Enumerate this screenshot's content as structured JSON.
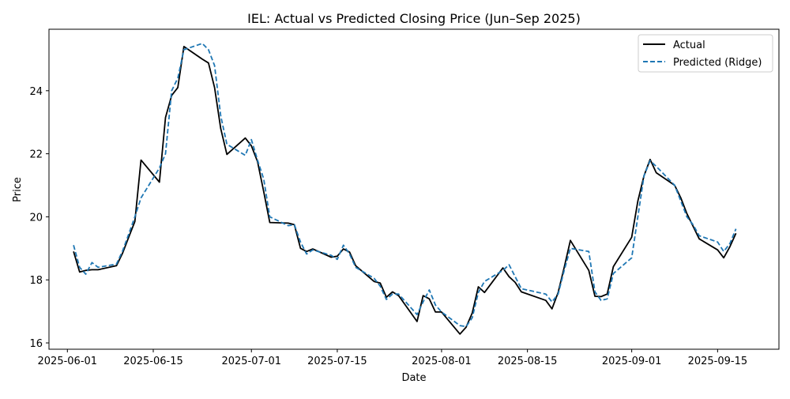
{
  "chart_data": {
    "type": "line",
    "title": "IEL: Actual vs Predicted Closing Price (Jun–Sep 2025)",
    "xlabel": "Date",
    "ylabel": "Price",
    "xlim": [
      "2025-05-29",
      "2025-09-25"
    ],
    "ylim": [
      15.8,
      25.95
    ],
    "x_ticks": [
      "2025-06-01",
      "2025-06-15",
      "2025-07-01",
      "2025-07-15",
      "2025-08-01",
      "2025-08-15",
      "2025-09-01",
      "2025-09-15"
    ],
    "y_ticks": [
      16,
      18,
      20,
      22,
      24
    ],
    "legend_position": "top-right",
    "grid": false,
    "series": [
      {
        "name": "Actual",
        "color": "#000000",
        "style": "solid",
        "points": [
          [
            "2025-06-02",
            18.9
          ],
          [
            "2025-06-03",
            18.25
          ],
          [
            "2025-06-04",
            18.3
          ],
          [
            "2025-06-05",
            18.32
          ],
          [
            "2025-06-06",
            18.32
          ],
          [
            "2025-06-09",
            18.45
          ],
          [
            "2025-06-10",
            18.85
          ],
          [
            "2025-06-11",
            19.35
          ],
          [
            "2025-06-12",
            19.85
          ],
          [
            "2025-06-13",
            21.8
          ],
          [
            "2025-06-16",
            21.1
          ],
          [
            "2025-06-17",
            23.15
          ],
          [
            "2025-06-18",
            23.85
          ],
          [
            "2025-06-19",
            24.1
          ],
          [
            "2025-06-20",
            25.4
          ],
          [
            "2025-06-23",
            25.0
          ],
          [
            "2025-06-24",
            24.88
          ],
          [
            "2025-06-25",
            24.1
          ],
          [
            "2025-06-26",
            22.8
          ],
          [
            "2025-06-27",
            21.98
          ],
          [
            "2025-06-30",
            22.5
          ],
          [
            "2025-07-01",
            22.25
          ],
          [
            "2025-07-02",
            21.75
          ],
          [
            "2025-07-03",
            20.8
          ],
          [
            "2025-07-04",
            19.82
          ],
          [
            "2025-07-07",
            19.8
          ],
          [
            "2025-07-08",
            19.75
          ],
          [
            "2025-07-09",
            19.0
          ],
          [
            "2025-07-10",
            18.9
          ],
          [
            "2025-07-11",
            18.98
          ],
          [
            "2025-07-14",
            18.72
          ],
          [
            "2025-07-15",
            18.75
          ],
          [
            "2025-07-16",
            18.98
          ],
          [
            "2025-07-17",
            18.88
          ],
          [
            "2025-07-18",
            18.45
          ],
          [
            "2025-07-21",
            17.95
          ],
          [
            "2025-07-22",
            17.9
          ],
          [
            "2025-07-23",
            17.45
          ],
          [
            "2025-07-24",
            17.62
          ],
          [
            "2025-07-25",
            17.5
          ],
          [
            "2025-07-28",
            16.68
          ],
          [
            "2025-07-29",
            17.5
          ],
          [
            "2025-07-30",
            17.4
          ],
          [
            "2025-07-31",
            16.98
          ],
          [
            "2025-08-01",
            16.98
          ],
          [
            "2025-08-04",
            16.28
          ],
          [
            "2025-08-05",
            16.5
          ],
          [
            "2025-08-06",
            16.95
          ],
          [
            "2025-08-07",
            17.78
          ],
          [
            "2025-08-08",
            17.6
          ],
          [
            "2025-08-11",
            18.38
          ],
          [
            "2025-08-12",
            18.1
          ],
          [
            "2025-08-13",
            17.92
          ],
          [
            "2025-08-14",
            17.62
          ],
          [
            "2025-08-18",
            17.35
          ],
          [
            "2025-08-19",
            17.08
          ],
          [
            "2025-08-20",
            17.6
          ],
          [
            "2025-08-21",
            18.4
          ],
          [
            "2025-08-22",
            19.25
          ],
          [
            "2025-08-25",
            18.3
          ],
          [
            "2025-08-26",
            17.48
          ],
          [
            "2025-08-27",
            17.47
          ],
          [
            "2025-08-28",
            17.55
          ],
          [
            "2025-08-29",
            18.42
          ],
          [
            "2025-09-01",
            19.35
          ],
          [
            "2025-09-02",
            20.5
          ],
          [
            "2025-09-03",
            21.3
          ],
          [
            "2025-09-04",
            21.82
          ],
          [
            "2025-09-05",
            21.4
          ],
          [
            "2025-09-08",
            21.0
          ],
          [
            "2025-09-09",
            20.6
          ],
          [
            "2025-09-10",
            20.1
          ],
          [
            "2025-09-11",
            19.7
          ],
          [
            "2025-09-12",
            19.3
          ],
          [
            "2025-09-15",
            18.95
          ],
          [
            "2025-09-16",
            18.7
          ],
          [
            "2025-09-17",
            19.05
          ],
          [
            "2025-09-18",
            19.48
          ]
        ]
      },
      {
        "name": "Predicted (Ridge)",
        "color": "#1f77b4",
        "style": "dashed",
        "points": [
          [
            "2025-06-02",
            19.1
          ],
          [
            "2025-06-03",
            18.4
          ],
          [
            "2025-06-04",
            18.18
          ],
          [
            "2025-06-05",
            18.55
          ],
          [
            "2025-06-06",
            18.4
          ],
          [
            "2025-06-09",
            18.5
          ],
          [
            "2025-06-10",
            18.92
          ],
          [
            "2025-06-11",
            19.45
          ],
          [
            "2025-06-12",
            20.0
          ],
          [
            "2025-06-13",
            20.6
          ],
          [
            "2025-06-16",
            21.55
          ],
          [
            "2025-06-17",
            22.0
          ],
          [
            "2025-06-18",
            24.0
          ],
          [
            "2025-06-19",
            24.4
          ],
          [
            "2025-06-20",
            25.3
          ],
          [
            "2025-06-23",
            25.5
          ],
          [
            "2025-06-24",
            25.3
          ],
          [
            "2025-06-25",
            24.8
          ],
          [
            "2025-06-26",
            23.2
          ],
          [
            "2025-06-27",
            22.3
          ],
          [
            "2025-06-30",
            21.95
          ],
          [
            "2025-07-01",
            22.45
          ],
          [
            "2025-07-02",
            21.8
          ],
          [
            "2025-07-03",
            21.2
          ],
          [
            "2025-07-04",
            20.0
          ],
          [
            "2025-07-07",
            19.72
          ],
          [
            "2025-07-08",
            19.75
          ],
          [
            "2025-07-09",
            19.2
          ],
          [
            "2025-07-10",
            18.82
          ],
          [
            "2025-07-11",
            18.95
          ],
          [
            "2025-07-14",
            18.78
          ],
          [
            "2025-07-15",
            18.65
          ],
          [
            "2025-07-16",
            19.1
          ],
          [
            "2025-07-17",
            18.82
          ],
          [
            "2025-07-18",
            18.4
          ],
          [
            "2025-07-21",
            18.05
          ],
          [
            "2025-07-22",
            17.8
          ],
          [
            "2025-07-23",
            17.38
          ],
          [
            "2025-07-24",
            17.55
          ],
          [
            "2025-07-25",
            17.55
          ],
          [
            "2025-07-28",
            16.9
          ],
          [
            "2025-07-29",
            17.3
          ],
          [
            "2025-07-30",
            17.68
          ],
          [
            "2025-07-31",
            17.2
          ],
          [
            "2025-08-01",
            16.98
          ],
          [
            "2025-08-04",
            16.55
          ],
          [
            "2025-08-05",
            16.52
          ],
          [
            "2025-08-06",
            16.8
          ],
          [
            "2025-08-07",
            17.6
          ],
          [
            "2025-08-08",
            17.95
          ],
          [
            "2025-08-11",
            18.3
          ],
          [
            "2025-08-12",
            18.48
          ],
          [
            "2025-08-13",
            18.1
          ],
          [
            "2025-08-14",
            17.72
          ],
          [
            "2025-08-18",
            17.55
          ],
          [
            "2025-08-19",
            17.3
          ],
          [
            "2025-08-20",
            17.55
          ],
          [
            "2025-08-21",
            18.3
          ],
          [
            "2025-08-22",
            19.0
          ],
          [
            "2025-08-25",
            18.9
          ],
          [
            "2025-08-26",
            17.62
          ],
          [
            "2025-08-27",
            17.35
          ],
          [
            "2025-08-28",
            17.4
          ],
          [
            "2025-08-29",
            18.2
          ],
          [
            "2025-09-01",
            18.7
          ],
          [
            "2025-09-02",
            20.0
          ],
          [
            "2025-09-03",
            21.3
          ],
          [
            "2025-09-04",
            21.78
          ],
          [
            "2025-09-05",
            21.6
          ],
          [
            "2025-09-08",
            21.0
          ],
          [
            "2025-09-09",
            20.5
          ],
          [
            "2025-09-10",
            20.0
          ],
          [
            "2025-09-11",
            19.75
          ],
          [
            "2025-09-12",
            19.4
          ],
          [
            "2025-09-15",
            19.2
          ],
          [
            "2025-09-16",
            18.9
          ],
          [
            "2025-09-17",
            19.15
          ],
          [
            "2025-09-18",
            19.62
          ]
        ]
      }
    ]
  }
}
